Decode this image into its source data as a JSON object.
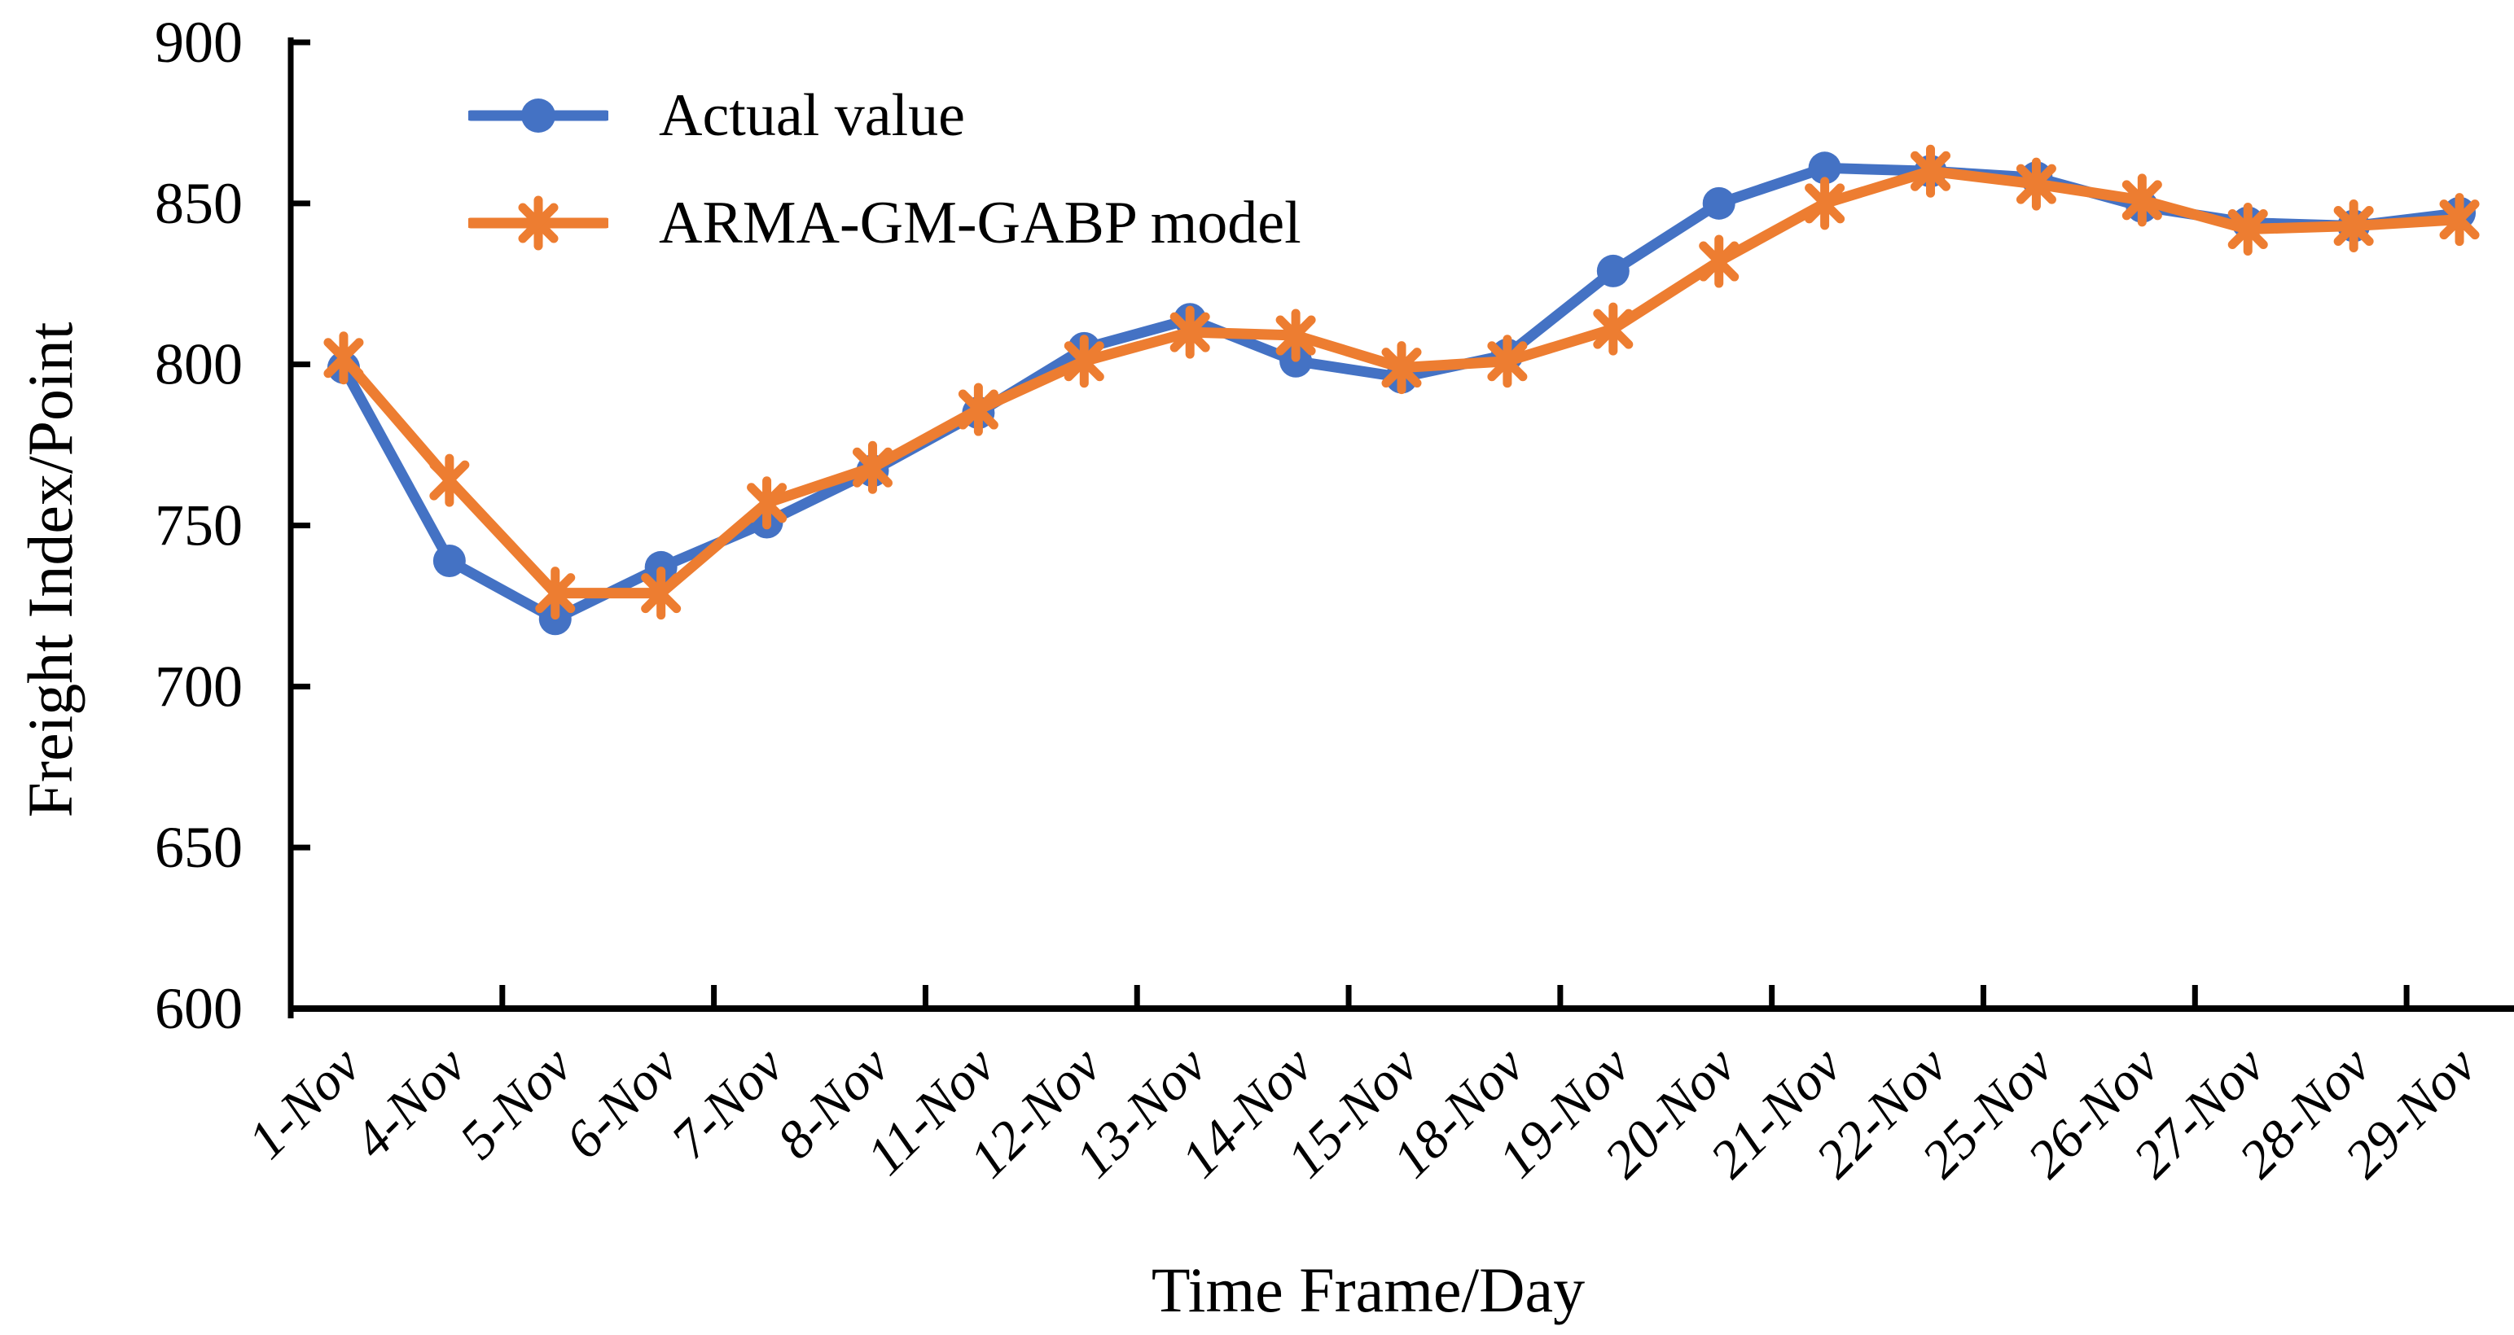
{
  "figure": {
    "background": "#ffffff",
    "text_color": "#000000",
    "axis_color": "#000000"
  },
  "legend": {
    "position": "top-left-inside",
    "items": [
      {
        "label": "Actual value",
        "marker": "circle-icon"
      },
      {
        "label": "ARMA-GM-GABP model",
        "marker": "asterisk-icon"
      }
    ]
  },
  "chart_data": {
    "type": "line",
    "title": "",
    "xlabel": "Time Frame/Day",
    "ylabel": "Freight Index/Point",
    "ylim": [
      600,
      900
    ],
    "y_ticks": [
      900,
      850,
      800,
      750,
      700,
      650,
      600
    ],
    "grid": false,
    "legend_position": "top-left-inside",
    "categories": [
      "1-Nov",
      "4-Nov",
      "5-Nov",
      "6-Nov",
      "7-Nov",
      "8-Nov",
      "11-Nov",
      "12-Nov",
      "13-Nov",
      "14-Nov",
      "15-Nov",
      "18-Nov",
      "19-Nov",
      "20-Nov",
      "21-Nov",
      "22-Nov",
      "25-Nov",
      "26-Nov",
      "27-Nov",
      "28-Nov",
      "29-Nov"
    ],
    "series": [
      {
        "name": "Actual value",
        "color": "#4472C4",
        "marker": "circle",
        "values": [
          799,
          739,
          721,
          737,
          751,
          767,
          785,
          805,
          814,
          801,
          796,
          803,
          829,
          850,
          861,
          860,
          858,
          849,
          844,
          843,
          847
        ]
      },
      {
        "name": "ARMA-GM-GABP model",
        "color": "#ED7D31",
        "marker": "asterisk",
        "values": [
          802,
          764,
          729,
          729,
          757,
          768,
          786,
          801,
          810,
          809,
          799,
          801,
          811,
          832,
          850,
          860,
          856,
          851,
          842,
          843,
          845
        ]
      }
    ]
  }
}
